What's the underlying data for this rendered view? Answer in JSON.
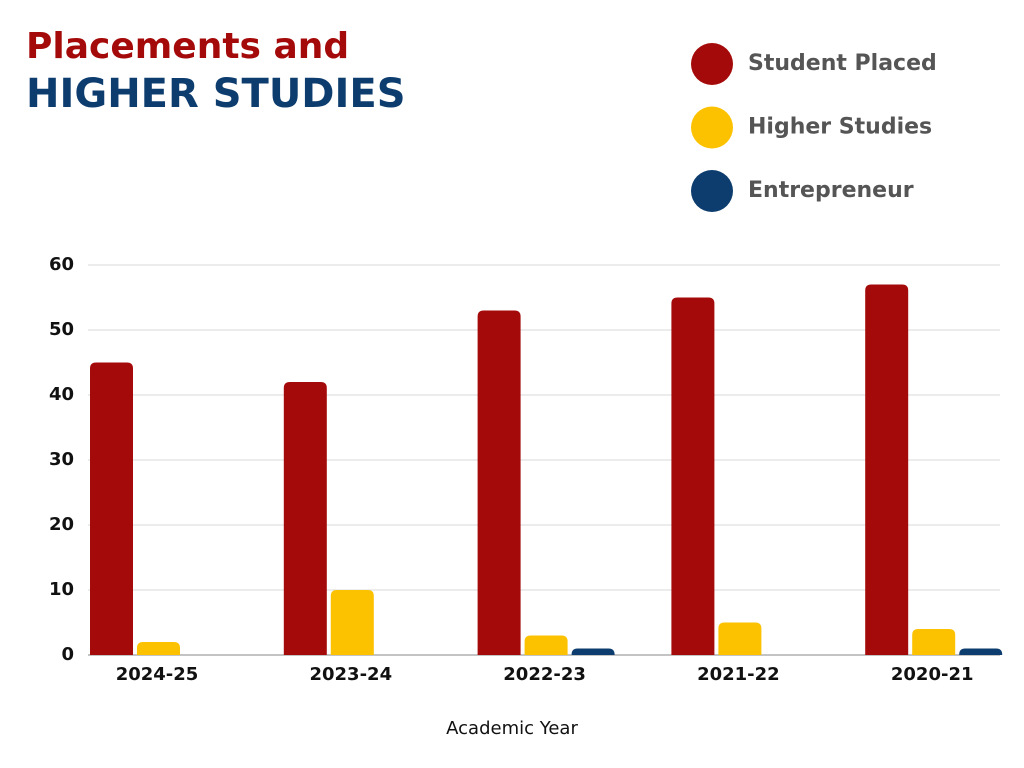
{
  "chart_data": {
    "type": "bar",
    "title": "Placements and",
    "subtitle": "HIGHER STUDIES",
    "x_label": "Academic Year",
    "categories": [
      "2024-25",
      "2023-24",
      "2022-23",
      "2021-22",
      "2020-21"
    ],
    "series": [
      {
        "name": "Student Placed",
        "color": "#a50a0a",
        "values": [
          45,
          42,
          53,
          55,
          57
        ]
      },
      {
        "name": "Higher Studies",
        "color": "#fcc200",
        "values": [
          2,
          10,
          3,
          5,
          4
        ]
      },
      {
        "name": "Entrepreneur",
        "color": "#0d3d6e",
        "values": [
          0,
          0,
          1,
          0,
          1
        ]
      }
    ],
    "ylim": [
      0,
      60
    ],
    "yticks": [
      0,
      10,
      20,
      30,
      40,
      50,
      60
    ],
    "grid": true,
    "legend": "top-right"
  }
}
